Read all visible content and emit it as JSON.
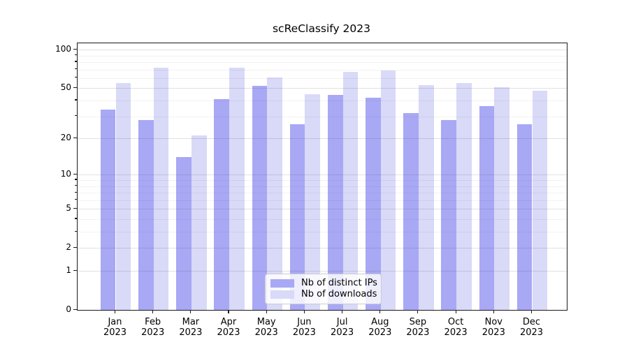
{
  "chart_data": {
    "type": "bar",
    "title": "scReClassify 2023",
    "categories": [
      "Jan",
      "Feb",
      "Mar",
      "Apr",
      "May",
      "Jun",
      "Jul",
      "Aug",
      "Sep",
      "Oct",
      "Nov",
      "Dec"
    ],
    "x_year": "2023",
    "series": [
      {
        "name": "Nb of distinct IPs",
        "color": "#a8a8f5",
        "values": [
          34,
          28,
          14,
          41,
          52,
          26,
          44,
          42,
          32,
          28,
          36,
          26
        ]
      },
      {
        "name": "Nb of downloads",
        "color": "#d9d9f8",
        "values": [
          55,
          72,
          21,
          72,
          61,
          45,
          67,
          69,
          53,
          55,
          51,
          48
        ]
      }
    ],
    "yscale": "log10(1+x)",
    "ylim": [
      0,
      112
    ],
    "y_tick_values": [
      0,
      1,
      2,
      5,
      10,
      20,
      50,
      100
    ],
    "y_tick_labels": [
      "0",
      "1",
      "2",
      "5",
      "10",
      "20",
      "50",
      "100"
    ],
    "y_minor_values": [
      3,
      4,
      6,
      7,
      8,
      9,
      30,
      40,
      60,
      70,
      80,
      90
    ],
    "grid": true,
    "legend_position": "lower center"
  },
  "colors": {
    "background": "#ffffff",
    "axis": "#1a1a1a",
    "bar_distinct_ips": "#a8a8f5",
    "bar_downloads": "#d9d9f8",
    "legend_border": "#cccccc"
  }
}
